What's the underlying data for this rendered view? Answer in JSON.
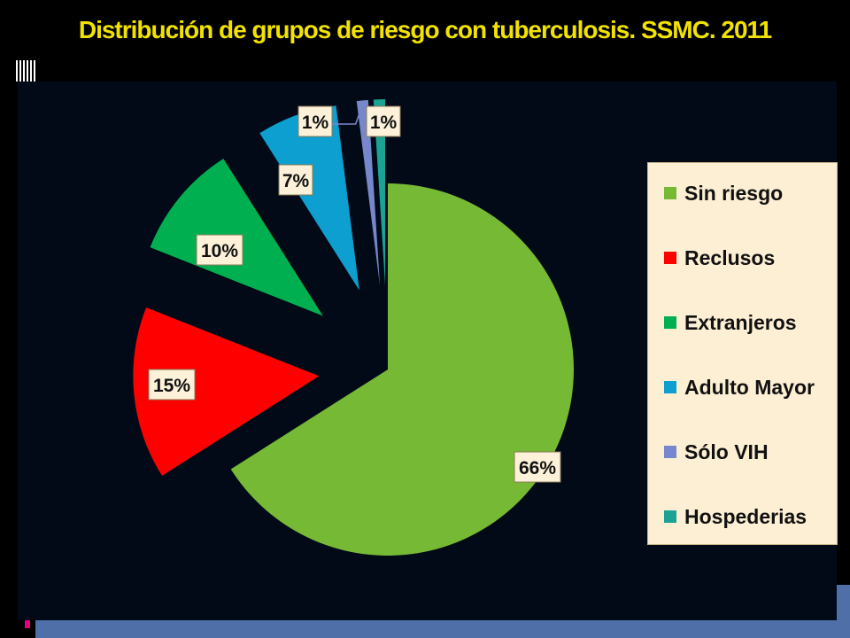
{
  "slide": {
    "title": "Distribución de grupos de riesgo con tuberculosis. SSMC. 2011"
  },
  "chart_data": {
    "type": "pie",
    "title": "Distribución de grupos de riesgo con tuberculosis. SSMC. 2011",
    "exploded": true,
    "legend_position": "right",
    "categories": [
      "Sin riesgo",
      "Reclusos",
      "Extranjeros",
      "Adulto Mayor",
      "Sólo VIH",
      "Hospederias"
    ],
    "values": [
      66,
      15,
      10,
      7,
      1,
      1
    ],
    "data_labels": [
      "66%",
      "15%",
      "10%",
      "7%",
      "1%",
      "1%"
    ],
    "colors": [
      "#76b935",
      "#ff0000",
      "#00b050",
      "#0d9fcf",
      "#7787cc",
      "#1aa394"
    ]
  }
}
